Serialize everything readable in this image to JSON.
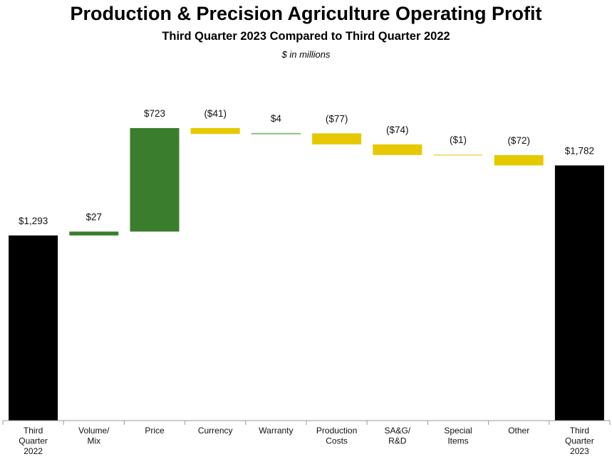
{
  "header": {
    "title": "Production & Precision Agriculture Operating Profit",
    "subtitle": "Third Quarter 2023 Compared to Third Quarter 2022",
    "units": "$ in millions"
  },
  "colors": {
    "total": "#000000",
    "increase": "#3a7d2c",
    "increase_thin": "#8cc083",
    "decrease": "#e6c800",
    "decrease_thin": "#f0e27a",
    "axis": "#999999"
  },
  "chart_data": {
    "type": "bar",
    "subtype": "waterfall",
    "title": "Production & Precision Agriculture Operating Profit",
    "subtitle": "Third Quarter 2023 Compared to Third Quarter 2022",
    "units": "$ in millions",
    "ylim": [
      0,
      2300
    ],
    "grid": false,
    "legend": "none",
    "steps": [
      {
        "category": [
          "Third",
          "Quarter",
          "2022"
        ],
        "value": 1293,
        "kind": "total",
        "label": "$1,293"
      },
      {
        "category": [
          "Volume/",
          "Mix"
        ],
        "value": 27,
        "kind": "delta",
        "label": "$27"
      },
      {
        "category": [
          "Price"
        ],
        "value": 723,
        "kind": "delta",
        "label": "$723"
      },
      {
        "category": [
          "Currency"
        ],
        "value": -41,
        "kind": "delta",
        "label": "($41)"
      },
      {
        "category": [
          "Warranty"
        ],
        "value": 4,
        "kind": "delta",
        "label": "$4"
      },
      {
        "category": [
          "Production",
          "Costs"
        ],
        "value": -77,
        "kind": "delta",
        "label": "($77)"
      },
      {
        "category": [
          "SA&G/",
          "R&D"
        ],
        "value": -74,
        "kind": "delta",
        "label": "($74)"
      },
      {
        "category": [
          "Special",
          "Items"
        ],
        "value": -1,
        "kind": "delta",
        "label": "($1)"
      },
      {
        "category": [
          "Other"
        ],
        "value": -72,
        "kind": "delta",
        "label": "($72)"
      },
      {
        "category": [
          "Third",
          "Quarter",
          "2023"
        ],
        "value": 1782,
        "kind": "total",
        "label": "$1,782"
      }
    ]
  }
}
